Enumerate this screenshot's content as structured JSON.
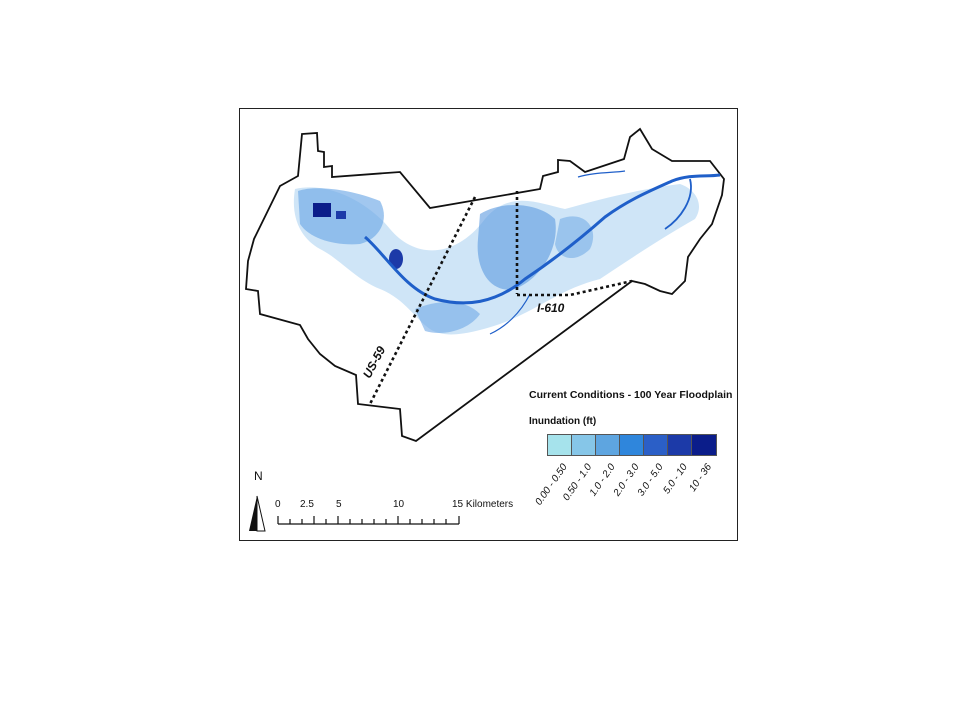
{
  "map": {
    "roads": [
      {
        "id": "us59",
        "label": "US-59"
      },
      {
        "id": "i610",
        "label": "I-610"
      }
    ],
    "legend": {
      "title": "Current Conditions - 100 Year Floodplain",
      "subtitle": "Inundation (ft)",
      "classes": [
        {
          "label": "0.00 - 0.50",
          "color": "#a6e3ec"
        },
        {
          "label": "0.50 - 1.0",
          "color": "#86c6e8"
        },
        {
          "label": "1.0 - 2.0",
          "color": "#5ea5e0"
        },
        {
          "label": "2.0 - 3.0",
          "color": "#2f86dc"
        },
        {
          "label": "3.0 - 5.0",
          "color": "#2b5fc7"
        },
        {
          "label": "5.0 - 10",
          "color": "#1c3aa8"
        },
        {
          "label": "10 - 36",
          "color": "#0b1d8a"
        }
      ]
    },
    "scale_bar": {
      "ticks": [
        "0",
        "2.5",
        "5",
        "10",
        "15 Kilometers"
      ]
    },
    "north_arrow": {
      "label": "N"
    },
    "colors": {
      "boundary": "#111111",
      "floodplain_light": "#9fc9f0",
      "floodplain_mid": "#3f8fe0",
      "channel": "#1f5fc9"
    }
  }
}
